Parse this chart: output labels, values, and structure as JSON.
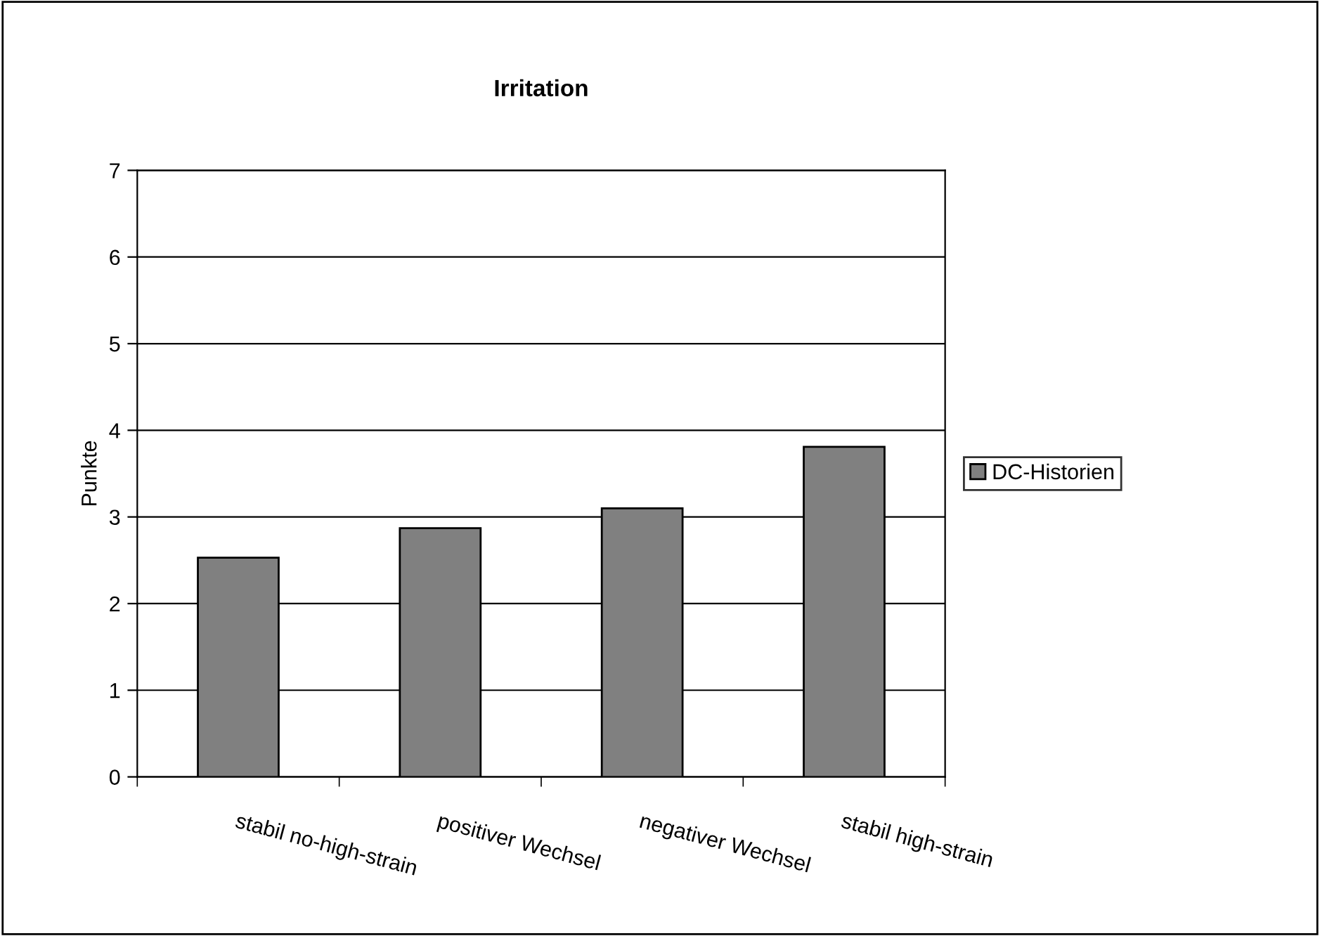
{
  "chart_data": {
    "type": "bar",
    "title": "Irritation",
    "ylabel": "Punkte",
    "categories": [
      "stabil no-high-strain",
      "positiver Wechsel",
      "negativer Wechsel",
      "stabil high-strain"
    ],
    "series": [
      {
        "name": "DC-Historien",
        "color": "#808080",
        "values": [
          2.53,
          2.87,
          3.1,
          3.81
        ]
      }
    ],
    "ylim": [
      0,
      7
    ],
    "yticks": [
      0,
      1,
      2,
      3,
      4,
      5,
      6,
      7
    ],
    "grid": "y",
    "legend": "right"
  }
}
